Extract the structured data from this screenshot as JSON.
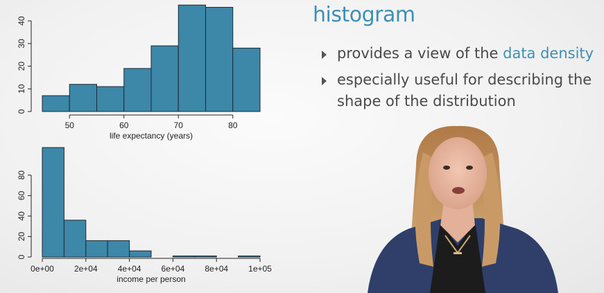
{
  "slide": {
    "title": "histogram",
    "bullets": [
      {
        "before": "provides a view of the ",
        "highlight": "data density",
        "after": ""
      },
      {
        "before": "especially useful for describing the shape of the distribution",
        "highlight": "",
        "after": ""
      }
    ],
    "accent_color": "#3f8fb5"
  },
  "chart_data": [
    {
      "type": "bar",
      "subtype": "histogram",
      "bins": [
        [
          45,
          50
        ],
        [
          50,
          55
        ],
        [
          55,
          60
        ],
        [
          60,
          65
        ],
        [
          65,
          70
        ],
        [
          70,
          75
        ],
        [
          75,
          80
        ],
        [
          80,
          85
        ]
      ],
      "values": [
        7,
        12,
        11,
        19,
        29,
        47,
        46,
        28
      ],
      "xlabel": "life expectancy (years)",
      "ylabel": "",
      "xticks": [
        50,
        60,
        70,
        80
      ],
      "yticks": [
        0,
        10,
        20,
        30,
        40
      ],
      "xlim": [
        45,
        85
      ],
      "ylim": [
        0,
        48
      ],
      "bar_color": "#3d87a8",
      "grid": false,
      "legend": "none"
    },
    {
      "type": "bar",
      "subtype": "histogram",
      "bins": [
        [
          0,
          10000
        ],
        [
          10000,
          20000
        ],
        [
          20000,
          30000
        ],
        [
          30000,
          40000
        ],
        [
          40000,
          50000
        ],
        [
          50000,
          60000
        ],
        [
          60000,
          70000
        ],
        [
          70000,
          80000
        ],
        [
          80000,
          90000
        ],
        [
          90000,
          100000
        ]
      ],
      "values": [
        107,
        36,
        16,
        16,
        6,
        0,
        1,
        1,
        0,
        1
      ],
      "xlabel": "income per person",
      "ylabel": "",
      "xticks": [
        0,
        20000,
        40000,
        60000,
        80000,
        100000
      ],
      "xtick_labels": [
        "0e+00",
        "2e+04",
        "4e+04",
        "6e+04",
        "8e+04",
        "1e+05"
      ],
      "yticks": [
        0,
        20,
        40,
        60,
        80
      ],
      "xlim": [
        0,
        100000
      ],
      "ylim": [
        0,
        107
      ],
      "bar_color": "#3d87a8",
      "grid": false,
      "legend": "none"
    }
  ]
}
